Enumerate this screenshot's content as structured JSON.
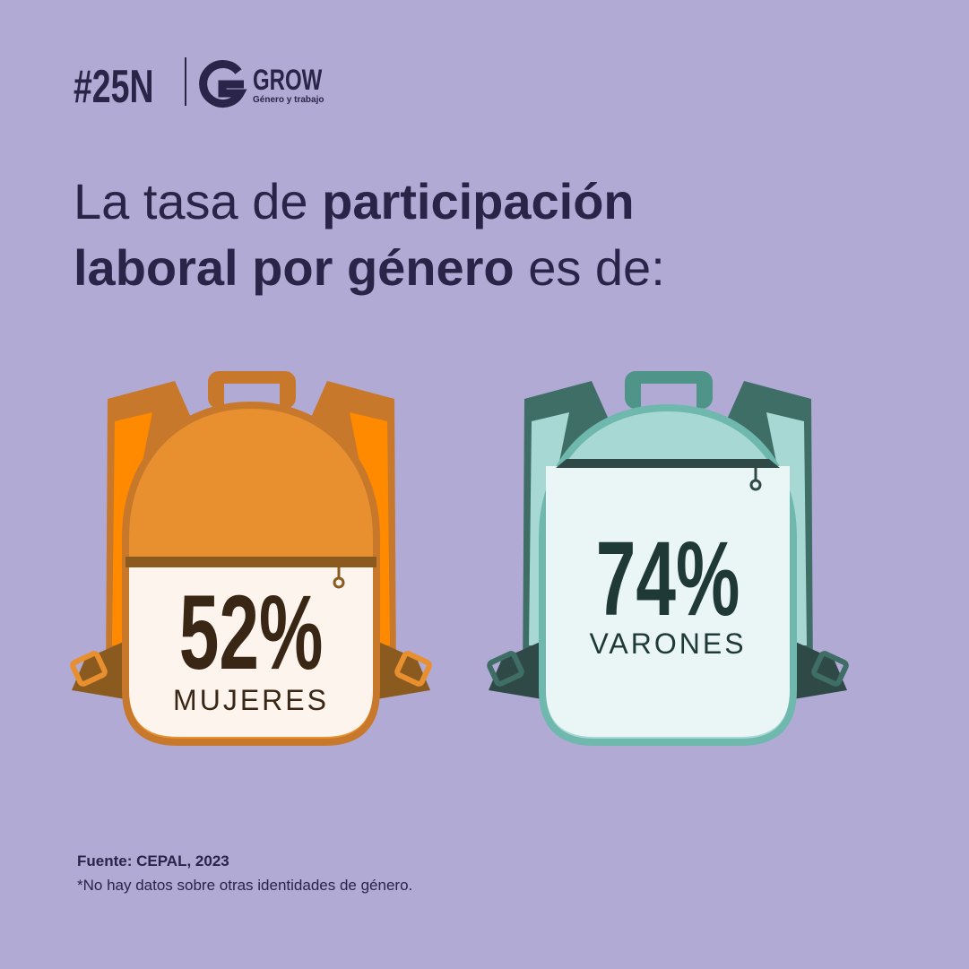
{
  "header": {
    "hashtag": "#25N",
    "logo": {
      "name": "GROW",
      "tagline": "Género y trabajo"
    }
  },
  "title": {
    "lines": [
      [
        {
          "text": "La tasa de ",
          "bold": false
        },
        {
          "text": "participación",
          "bold": true
        }
      ],
      [
        {
          "text": "laboral por género",
          "bold": true
        },
        {
          "text": " es de:",
          "bold": false
        }
      ]
    ]
  },
  "items": [
    {
      "value": "52%",
      "label": "MUJERES"
    },
    {
      "value": "74%",
      "label": "VARONES"
    }
  ],
  "footer": {
    "source": "Fuente: CEPAL, 2023",
    "note": "*No hay datos sobre otras identidades de género."
  }
}
